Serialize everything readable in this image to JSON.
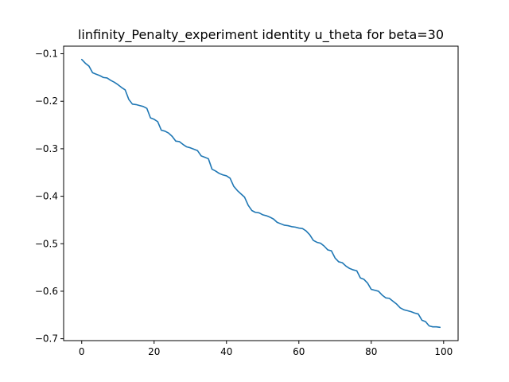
{
  "chart_data": {
    "type": "line",
    "title": "linfinity_Penalty_experiment identity u_theta for beta=30",
    "xlabel": "",
    "ylabel": "",
    "xlim": [
      -5,
      104
    ],
    "ylim": [
      -0.704,
      -0.084
    ],
    "xticks": [
      0,
      20,
      40,
      60,
      80,
      100
    ],
    "yticks": [
      -0.7,
      -0.6,
      -0.5,
      -0.4,
      -0.3,
      -0.2,
      -0.1
    ],
    "xtick_labels": [
      "0",
      "20",
      "40",
      "60",
      "80",
      "100"
    ],
    "ytick_labels": [
      "−0.7",
      "−0.6",
      "−0.5",
      "−0.4",
      "−0.3",
      "−0.2",
      "−0.1"
    ],
    "grid": false,
    "legend": "none",
    "series": [
      {
        "color": "#1f77b4",
        "x": [
          0,
          1,
          2,
          3,
          4,
          5,
          6,
          7,
          8,
          9,
          10,
          11,
          12,
          13,
          14,
          15,
          16,
          17,
          18,
          19,
          20,
          21,
          22,
          23,
          24,
          25,
          26,
          27,
          28,
          29,
          30,
          31,
          32,
          33,
          34,
          35,
          36,
          37,
          38,
          39,
          40,
          41,
          42,
          43,
          44,
          45,
          46,
          47,
          48,
          49,
          50,
          51,
          52,
          53,
          54,
          55,
          56,
          57,
          58,
          59,
          60,
          61,
          62,
          63,
          64,
          65,
          66,
          67,
          68,
          69,
          70,
          71,
          72,
          73,
          74,
          75,
          76,
          77,
          78,
          79,
          80,
          81,
          82,
          83,
          84,
          85,
          86,
          87,
          88,
          89,
          90,
          91,
          92,
          93,
          94,
          95,
          96,
          97,
          98,
          99
        ],
        "y": [
          -0.112,
          -0.12,
          -0.126,
          -0.14,
          -0.143,
          -0.146,
          -0.15,
          -0.151,
          -0.156,
          -0.16,
          -0.165,
          -0.171,
          -0.176,
          -0.196,
          -0.206,
          -0.207,
          -0.209,
          -0.211,
          -0.215,
          -0.235,
          -0.238,
          -0.243,
          -0.261,
          -0.263,
          -0.267,
          -0.274,
          -0.284,
          -0.285,
          -0.291,
          -0.296,
          -0.298,
          -0.301,
          -0.304,
          -0.315,
          -0.318,
          -0.321,
          -0.343,
          -0.347,
          -0.352,
          -0.355,
          -0.357,
          -0.362,
          -0.379,
          -0.388,
          -0.395,
          -0.402,
          -0.419,
          -0.43,
          -0.434,
          -0.435,
          -0.439,
          -0.441,
          -0.444,
          -0.448,
          -0.455,
          -0.458,
          -0.461,
          -0.462,
          -0.464,
          -0.465,
          -0.467,
          -0.468,
          -0.473,
          -0.481,
          -0.493,
          -0.497,
          -0.499,
          -0.505,
          -0.513,
          -0.515,
          -0.53,
          -0.538,
          -0.54,
          -0.547,
          -0.552,
          -0.555,
          -0.557,
          -0.572,
          -0.575,
          -0.583,
          -0.596,
          -0.598,
          -0.6,
          -0.608,
          -0.614,
          -0.615,
          -0.621,
          -0.627,
          -0.635,
          -0.639,
          -0.641,
          -0.643,
          -0.646,
          -0.648,
          -0.661,
          -0.664,
          -0.673,
          -0.675,
          -0.675,
          -0.676
        ]
      }
    ]
  }
}
